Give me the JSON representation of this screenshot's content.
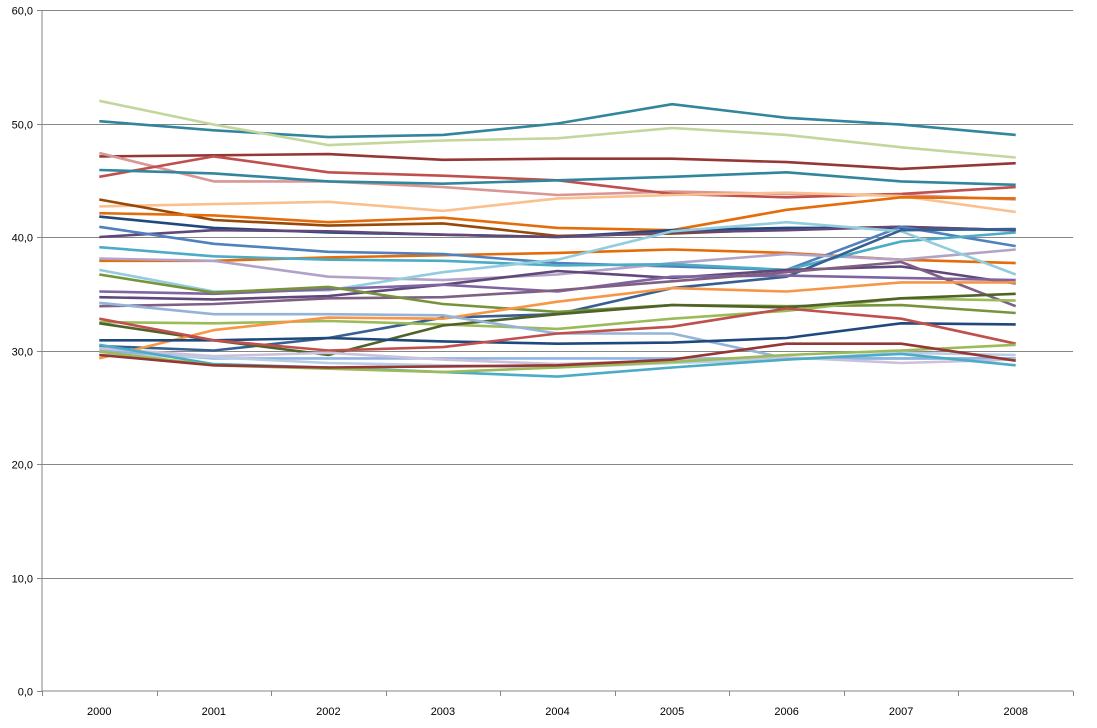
{
  "chart_data": {
    "type": "line",
    "title": "",
    "xlabel": "",
    "ylabel": "",
    "x": [
      "2000",
      "2001",
      "2002",
      "2003",
      "2004",
      "2005",
      "2006",
      "2007",
      "2008"
    ],
    "ylim": [
      0,
      60
    ],
    "yticks": [
      "0,0",
      "10,0",
      "20,0",
      "30,0",
      "40,0",
      "50,0",
      "60,0"
    ],
    "grid": true,
    "legend": "none",
    "series": [
      {
        "color": "#31859c",
        "values": [
          50.2,
          49.4,
          48.8,
          49.0,
          50.0,
          51.7,
          50.5,
          49.9,
          49.0
        ]
      },
      {
        "color": "#c3d69b",
        "values": [
          52.0,
          49.9,
          48.1,
          48.5,
          48.7,
          49.6,
          49.0,
          47.9,
          47.0
        ]
      },
      {
        "color": "#953735",
        "values": [
          47.1,
          47.2,
          47.3,
          46.8,
          46.9,
          46.9,
          46.6,
          46.0,
          46.5
        ]
      },
      {
        "color": "#d99694",
        "values": [
          47.4,
          44.9,
          44.9,
          44.4,
          43.7,
          44.0,
          43.8,
          43.7,
          43.3
        ]
      },
      {
        "color": "#c0504d",
        "values": [
          45.3,
          47.1,
          45.7,
          45.4,
          45.0,
          43.8,
          43.5,
          43.8,
          44.4
        ]
      },
      {
        "color": "#31859c",
        "values": [
          45.9,
          45.6,
          44.9,
          44.7,
          45.0,
          45.3,
          45.7,
          44.9,
          44.6
        ]
      },
      {
        "color": "#fac090",
        "values": [
          42.7,
          42.9,
          43.1,
          42.3,
          43.4,
          43.7,
          43.9,
          43.6,
          42.2
        ]
      },
      {
        "color": "#e46c0a",
        "values": [
          37.9,
          37.9,
          38.2,
          38.4,
          38.6,
          38.9,
          38.6,
          38.0,
          37.7
        ]
      },
      {
        "color": "#984807",
        "values": [
          43.3,
          41.5,
          41.0,
          41.2,
          40.1,
          40.3,
          40.7,
          40.9,
          40.6
        ]
      },
      {
        "color": "#e46c0a",
        "values": [
          42.1,
          41.9,
          41.3,
          41.7,
          40.8,
          40.6,
          42.4,
          43.5,
          43.4
        ]
      },
      {
        "color": "#1f497d",
        "values": [
          41.8,
          40.8,
          40.4,
          40.2,
          40.0,
          40.6,
          40.8,
          40.8,
          40.6
        ]
      },
      {
        "color": "#60497a",
        "values": [
          40.0,
          40.6,
          40.5,
          40.2,
          40.0,
          40.4,
          40.6,
          40.9,
          40.6
        ]
      },
      {
        "color": "#4f81bd",
        "values": [
          40.9,
          39.4,
          38.7,
          38.5,
          37.7,
          37.4,
          37.1,
          40.9,
          39.2
        ]
      },
      {
        "color": "#b3a2c7",
        "values": [
          38.1,
          37.9,
          36.5,
          36.2,
          36.7,
          37.7,
          38.5,
          38.0,
          38.9
        ]
      },
      {
        "color": "#4bacc6",
        "values": [
          39.1,
          38.3,
          38.0,
          37.9,
          37.5,
          37.6,
          37.1,
          39.6,
          40.4
        ]
      },
      {
        "color": "#93cddd",
        "values": [
          37.1,
          35.2,
          35.3,
          36.9,
          38.0,
          40.5,
          41.3,
          40.5,
          36.7
        ]
      },
      {
        "color": "#376092",
        "values": [
          30.4,
          30.0,
          31.1,
          32.9,
          33.2,
          35.5,
          36.5,
          40.6,
          40.7
        ]
      },
      {
        "color": "#60497a",
        "values": [
          34.7,
          34.5,
          34.8,
          35.8,
          37.0,
          36.4,
          37.1,
          37.4,
          35.9
        ]
      },
      {
        "color": "#8064a2",
        "values": [
          35.2,
          35.0,
          35.4,
          35.8,
          35.2,
          36.5,
          36.6,
          36.4,
          36.2
        ]
      },
      {
        "color": "#7f6084",
        "values": [
          33.9,
          34.1,
          34.6,
          34.7,
          35.3,
          36.1,
          36.9,
          37.8,
          33.9
        ]
      },
      {
        "color": "#77933c",
        "values": [
          36.7,
          35.1,
          35.6,
          34.1,
          33.4,
          34.0,
          33.9,
          34.0,
          33.3
        ]
      },
      {
        "color": "#9bbb59",
        "values": [
          32.5,
          32.4,
          32.6,
          32.3,
          31.9,
          32.8,
          33.5,
          34.6,
          34.4
        ]
      },
      {
        "color": "#4f6228",
        "values": [
          32.4,
          30.9,
          29.6,
          32.2,
          33.2,
          34.0,
          33.8,
          34.6,
          35.0
        ]
      },
      {
        "color": "#f79646",
        "values": [
          29.3,
          31.8,
          32.9,
          32.8,
          34.3,
          35.5,
          35.2,
          36.0,
          36.0
        ]
      },
      {
        "color": "#95b3d7",
        "values": [
          34.2,
          33.2,
          33.2,
          33.1,
          31.5,
          31.5,
          29.3,
          29.3,
          29.3
        ]
      },
      {
        "color": "#8eb4e3",
        "values": [
          30.0,
          29.3,
          29.3,
          29.3,
          29.3,
          29.3,
          29.3,
          29.3,
          29.3
        ]
      },
      {
        "color": "#1f497d",
        "values": [
          30.9,
          30.9,
          31.1,
          30.8,
          30.6,
          30.7,
          31.1,
          32.4,
          32.3
        ]
      },
      {
        "color": "#c0504d",
        "values": [
          32.8,
          30.9,
          30.0,
          30.3,
          31.5,
          32.1,
          33.7,
          32.8,
          30.6
        ]
      },
      {
        "color": "#ccc1da",
        "values": [
          30.2,
          29.5,
          29.8,
          29.2,
          28.8,
          29.1,
          29.4,
          28.9,
          29.2
        ]
      },
      {
        "color": "#b9cde5",
        "values": [
          29.6,
          29.4,
          28.9,
          28.7,
          28.5,
          28.9,
          29.2,
          29.8,
          29.6
        ]
      },
      {
        "color": "#4bacc6",
        "values": [
          30.5,
          28.8,
          28.5,
          28.1,
          27.7,
          28.5,
          29.2,
          29.7,
          28.7
        ]
      },
      {
        "color": "#9bbb59",
        "values": [
          29.9,
          28.7,
          28.4,
          28.1,
          28.5,
          29.0,
          29.6,
          30.0,
          30.5
        ]
      },
      {
        "color": "#953735",
        "values": [
          29.6,
          28.7,
          28.5,
          28.6,
          28.7,
          29.2,
          30.6,
          30.6,
          29.1
        ]
      }
    ]
  }
}
